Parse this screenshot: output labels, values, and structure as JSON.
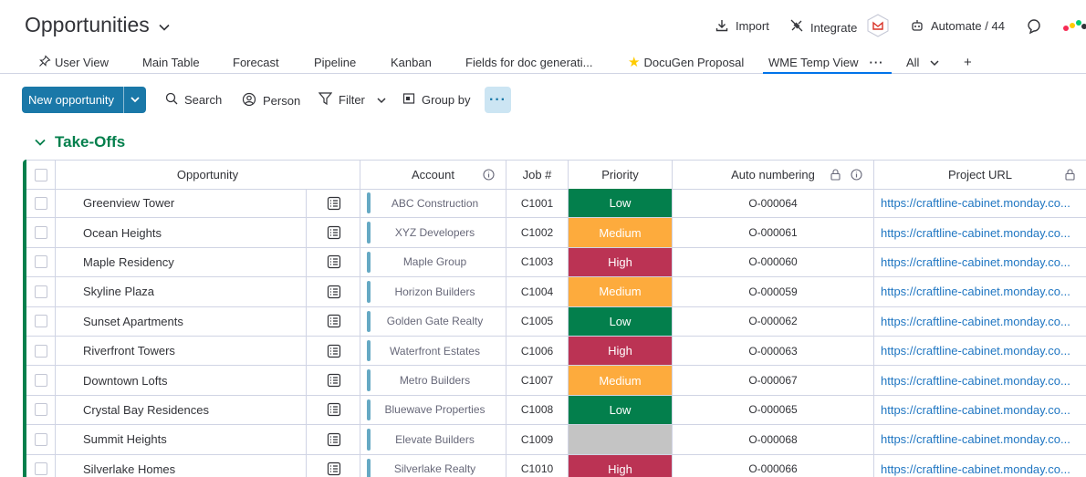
{
  "header": {
    "title": "Opportunities",
    "import_label": "Import",
    "integrate_label": "Integrate",
    "automate_label": "Automate / 44"
  },
  "tabs": [
    {
      "label": "User View",
      "icon": "pin-icon"
    },
    {
      "label": "Main Table"
    },
    {
      "label": "Forecast"
    },
    {
      "label": "Pipeline"
    },
    {
      "label": "Kanban"
    },
    {
      "label": "Fields for doc generati..."
    },
    {
      "label": "DocuGen Proposal",
      "icon": "star-icon"
    },
    {
      "label": "WME Temp View",
      "active": true
    },
    {
      "label": "All"
    },
    {
      "label": "+"
    }
  ],
  "toolbar": {
    "new_label": "New opportunity",
    "search_label": "Search",
    "person_label": "Person",
    "filter_label": "Filter",
    "group_by_label": "Group by",
    "more_label": "···"
  },
  "group": {
    "title": "Take-Offs",
    "color": "#037f4c"
  },
  "columns": {
    "opportunity": "Opportunity",
    "account": "Account",
    "job": "Job #",
    "priority": "Priority",
    "auto": "Auto numbering",
    "url": "Project URL"
  },
  "priority_colors": {
    "Low": "#037f4c",
    "Medium": "#fdab3d",
    "High": "#bb3354",
    "": "#c4c4c4"
  },
  "rows": [
    {
      "name": "Greenview Tower",
      "account": "ABC Construction",
      "job": "C1001",
      "priority": "Low",
      "auto": "O-000064",
      "url": "https://craftline-cabinet.monday.co..."
    },
    {
      "name": "Ocean Heights",
      "account": "XYZ Developers",
      "job": "C1002",
      "priority": "Medium",
      "auto": "O-000061",
      "url": "https://craftline-cabinet.monday.co..."
    },
    {
      "name": "Maple Residency",
      "account": "Maple Group",
      "job": "C1003",
      "priority": "High",
      "auto": "O-000060",
      "url": "https://craftline-cabinet.monday.co..."
    },
    {
      "name": "Skyline Plaza",
      "account": "Horizon Builders",
      "job": "C1004",
      "priority": "Medium",
      "auto": "O-000059",
      "url": "https://craftline-cabinet.monday.co..."
    },
    {
      "name": "Sunset Apartments",
      "account": "Golden Gate Realty",
      "job": "C1005",
      "priority": "Low",
      "auto": "O-000062",
      "url": "https://craftline-cabinet.monday.co..."
    },
    {
      "name": "Riverfront Towers",
      "account": "Waterfront Estates",
      "job": "C1006",
      "priority": "High",
      "auto": "O-000063",
      "url": "https://craftline-cabinet.monday.co..."
    },
    {
      "name": "Downtown Lofts",
      "account": "Metro Builders",
      "job": "C1007",
      "priority": "Medium",
      "auto": "O-000067",
      "url": "https://craftline-cabinet.monday.co..."
    },
    {
      "name": "Crystal Bay Residences",
      "account": "Bluewave Properties",
      "job": "C1008",
      "priority": "Low",
      "auto": "O-000065",
      "url": "https://craftline-cabinet.monday.co..."
    },
    {
      "name": "Summit Heights",
      "account": "Elevate Builders",
      "job": "C1009",
      "priority": "",
      "auto": "O-000068",
      "url": "https://craftline-cabinet.monday.co..."
    },
    {
      "name": "Silverlake Homes",
      "account": "Silverlake Realty",
      "job": "C1010",
      "priority": "High",
      "auto": "O-000066",
      "url": "https://craftline-cabinet.monday.co..."
    }
  ]
}
